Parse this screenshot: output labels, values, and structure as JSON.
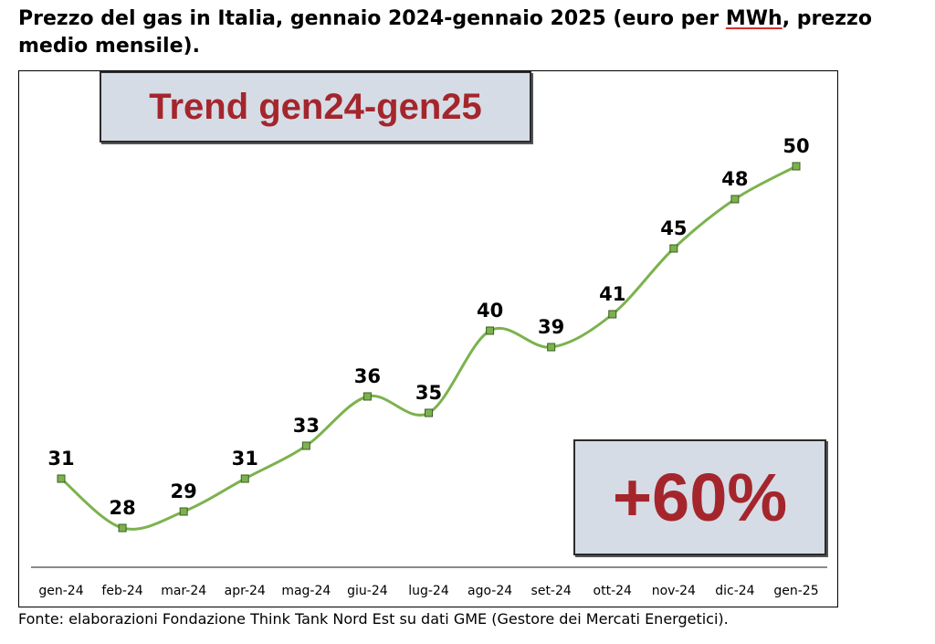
{
  "title": {
    "before": "Prezzo del gas in Italia, gennaio 2024-gennaio 2025 (euro per ",
    "underlined": "MWh",
    "after": ", prezzo medio mensile)."
  },
  "boxes": {
    "trend": "Trend gen24-gen25",
    "change": "+60%"
  },
  "source": "Fonte: elaborazioni Fondazione Think Tank Nord Est su dati GME (Gestore dei Mercati Energetici).",
  "colors": {
    "line": "#7cb24e",
    "marker_fill": "#7cb24e",
    "marker_stroke": "#3d5c22",
    "box_fill": "#d6dce6",
    "box_text": "#a4262c"
  },
  "chart_data": {
    "type": "line",
    "categories": [
      "gen-24",
      "feb-24",
      "mar-24",
      "apr-24",
      "mag-24",
      "giu-24",
      "lug-24",
      "ago-24",
      "set-24",
      "ott-24",
      "nov-24",
      "dic-24",
      "gen-25"
    ],
    "values": [
      31,
      28,
      29,
      31,
      33,
      36,
      35,
      40,
      39,
      41,
      45,
      48,
      50
    ],
    "data_labels": [
      "31",
      "28",
      "29",
      "31",
      "33",
      "36",
      "35",
      "40",
      "39",
      "41",
      "45",
      "48",
      "50"
    ],
    "smooth": true,
    "grid": false,
    "legend": false
  }
}
